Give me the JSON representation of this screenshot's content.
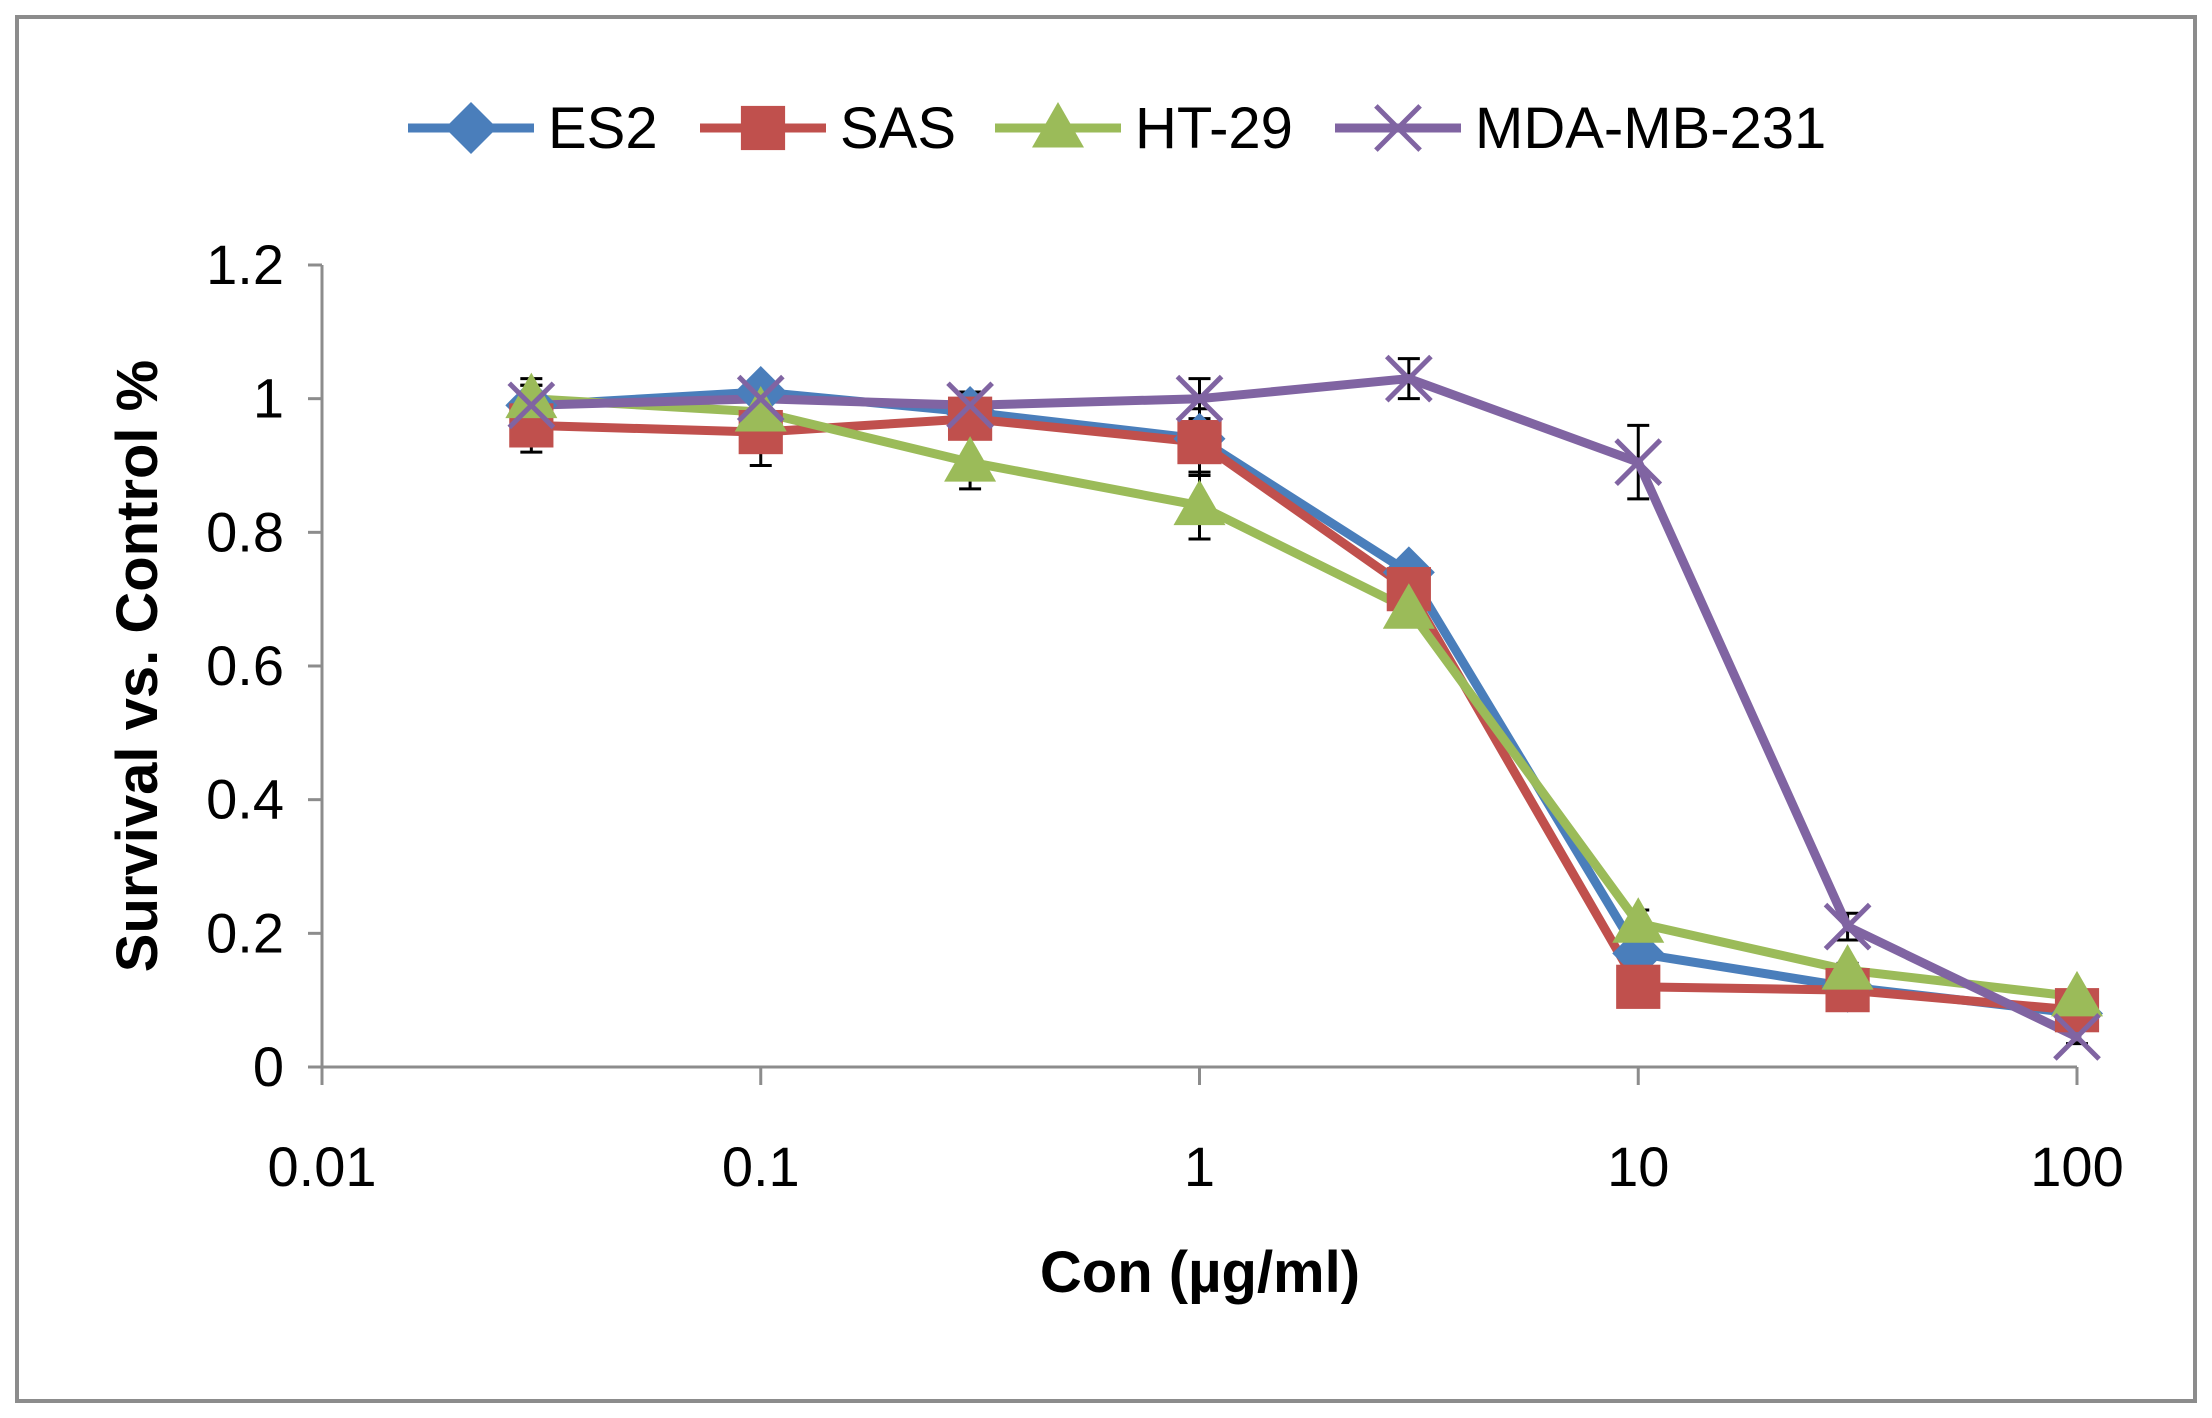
{
  "chart_data": {
    "type": "line",
    "title": "",
    "xlabel": "Con (µg/ml)",
    "ylabel": "Survival vs. Control %",
    "x_scale": "log",
    "xlim": [
      0.01,
      100
    ],
    "ylim": [
      0,
      1.2
    ],
    "x_ticks": [
      0.01,
      0.1,
      1,
      10,
      100
    ],
    "x_tick_labels": [
      "0.01",
      "0.1",
      "1",
      "10",
      "100"
    ],
    "y_ticks": [
      0,
      0.2,
      0.4,
      0.6,
      0.8,
      1,
      1.2
    ],
    "y_tick_labels": [
      "0",
      "0.2",
      "0.4",
      "0.6",
      "0.8",
      "1",
      "1.2"
    ],
    "grid": false,
    "legend_position": "top",
    "x": [
      0.03,
      0.1,
      0.3,
      1,
      3,
      10,
      30,
      100
    ],
    "series": [
      {
        "name": "ES2",
        "color": "#4a7ebb",
        "marker": "diamond",
        "values": [
          0.99,
          1.01,
          0.98,
          0.94,
          0.74,
          0.17,
          0.12,
          0.08
        ],
        "errors": [
          0.03,
          0.02,
          0.02,
          0.03,
          0.02,
          0.02,
          0.01,
          0.01
        ]
      },
      {
        "name": "SAS",
        "color": "#c0504d",
        "marker": "square",
        "values": [
          0.96,
          0.95,
          0.97,
          0.935,
          0.715,
          0.12,
          0.115,
          0.085
        ],
        "errors": [
          0.04,
          0.05,
          0.02,
          0.05,
          0.03,
          0.02,
          0.01,
          0.01
        ]
      },
      {
        "name": "HT-29",
        "color": "#9bbb59",
        "marker": "triangle",
        "values": [
          1.0,
          0.98,
          0.905,
          0.84,
          0.685,
          0.215,
          0.145,
          0.105
        ],
        "errors": [
          0.03,
          0.02,
          0.04,
          0.05,
          0.02,
          0.02,
          0.01,
          0.01
        ]
      },
      {
        "name": "MDA-MB-231",
        "color": "#8064a2",
        "marker": "x",
        "values": [
          0.99,
          1.0,
          0.99,
          1.0,
          1.03,
          0.905,
          0.21,
          0.045
        ],
        "errors": [
          0.03,
          0.02,
          0.02,
          0.03,
          0.03,
          0.055,
          0.02,
          0.01
        ]
      }
    ]
  }
}
